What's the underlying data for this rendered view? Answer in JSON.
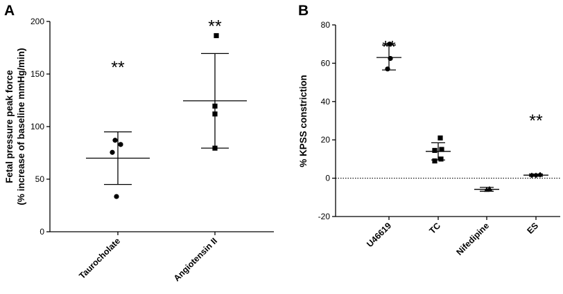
{
  "chart_data": [
    {
      "type": "scatter",
      "panel": "A",
      "title": "",
      "ylabel": [
        "Fetal pressure peak force",
        "(% increase of baseline mmHg/min)"
      ],
      "xlabel": "",
      "ylim": [
        0,
        200
      ],
      "yticks": [
        0,
        50,
        100,
        150,
        200
      ],
      "grid": false,
      "legend": "none",
      "categories": [
        {
          "label": "Taurocholate",
          "marker": "circle",
          "points": [
            33.5,
            75.5,
            83,
            87
          ],
          "mean": 70,
          "sd": 25,
          "significance": "**",
          "sig_value": 160
        },
        {
          "label": "Angiotensin II",
          "marker": "square",
          "points": [
            79.5,
            112,
            119.5,
            186.5
          ],
          "mean": 124.5,
          "sd": 45,
          "significance": "**",
          "sig_value": 199
        }
      ]
    },
    {
      "type": "scatter",
      "panel": "B",
      "title": "",
      "ylabel": "% KPSS constriction",
      "xlabel": "",
      "ylim": [
        -20,
        80
      ],
      "yticks": [
        -20,
        0,
        20,
        40,
        60,
        80
      ],
      "zero_line": "dotted",
      "grid": false,
      "legend": "none",
      "categories": [
        {
          "label": "U46619",
          "marker": "circle",
          "points": [
            57,
            62.5,
            70
          ],
          "mean": 63,
          "sd": 6.5,
          "significance": "**",
          "sig_value": 70.5
        },
        {
          "label": "TC",
          "marker": "square",
          "points": [
            9,
            10,
            14.5,
            15,
            21
          ],
          "mean": 14,
          "sd": 4.5
        },
        {
          "label": "Nifedipine",
          "marker": "triangle",
          "points": [
            -6,
            -5.5
          ],
          "mean": -5.8,
          "sd": 1
        },
        {
          "label": "ES",
          "marker": "diamond",
          "points": [
            1.5,
            1.5,
            1.8
          ],
          "mean": 1.6,
          "sd": 0.6,
          "significance": "**",
          "sig_value": 32
        }
      ]
    }
  ]
}
